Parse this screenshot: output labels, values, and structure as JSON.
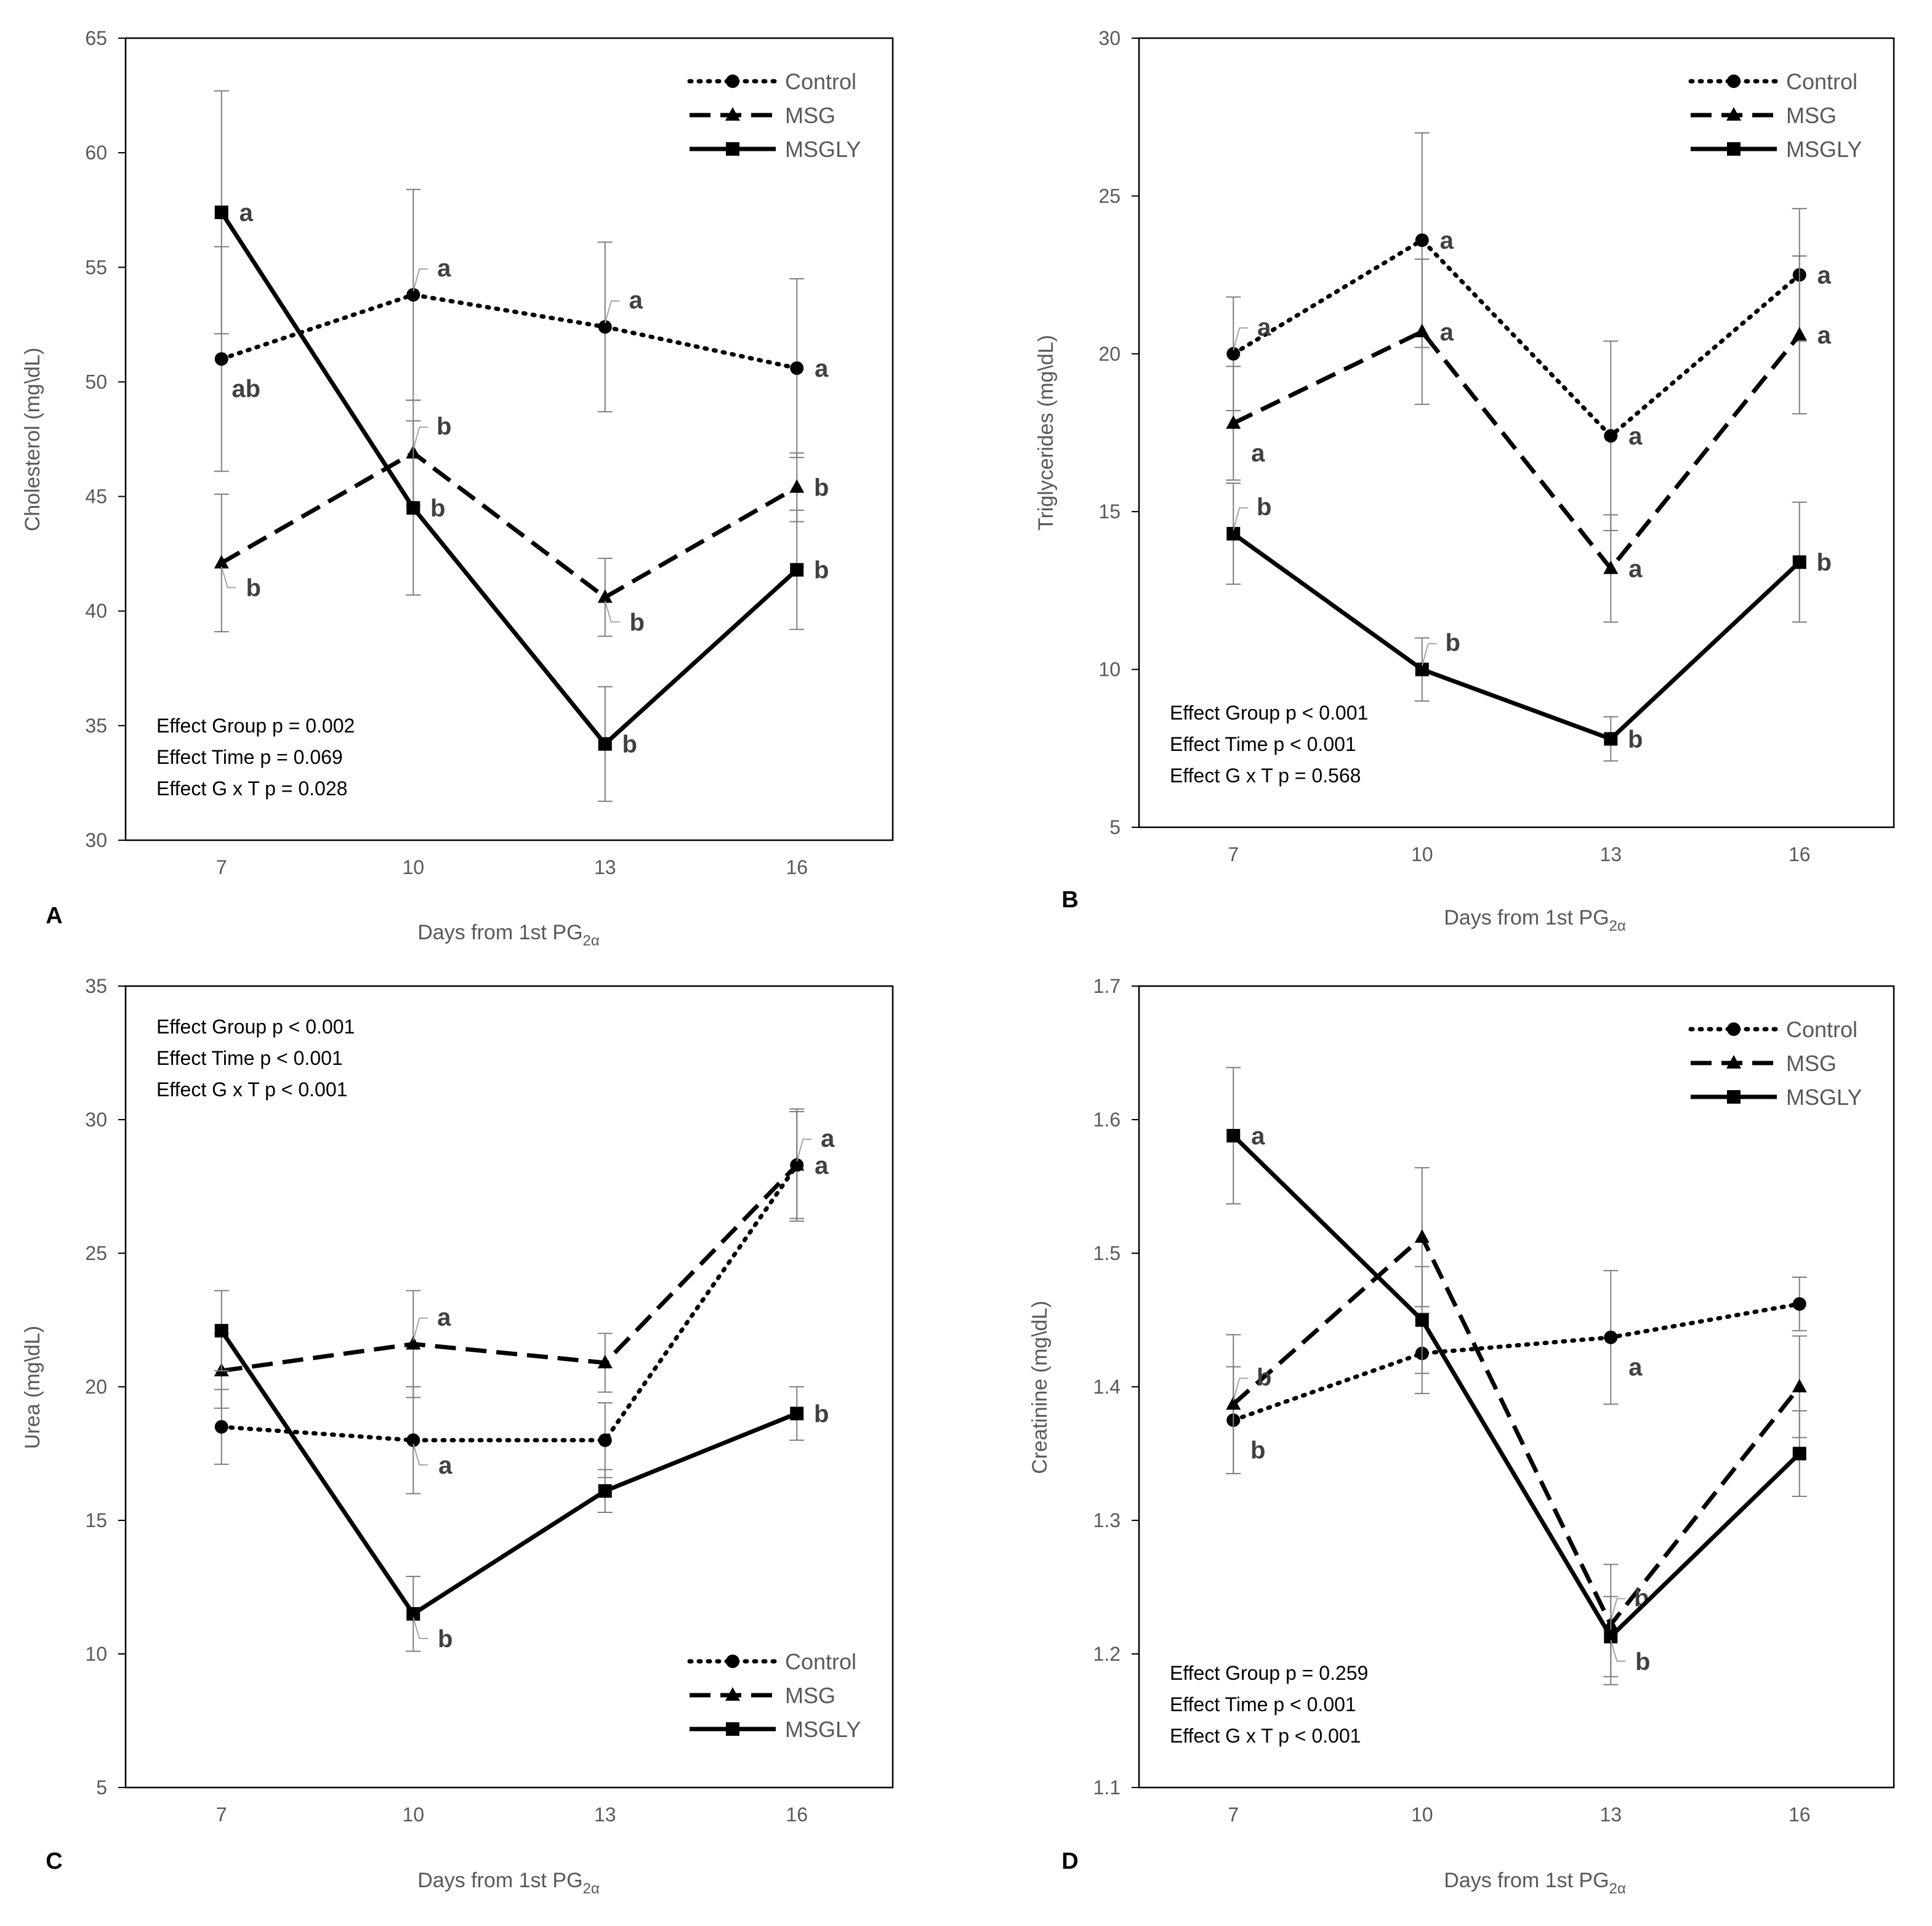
{
  "chart_data": [
    {
      "panel": "A",
      "type": "line",
      "ylabel": "Cholesterol  (mg\\dL)",
      "xlabel": "Days from 1st PG",
      "xlabel_sub": "2α",
      "categories": [
        "7",
        "10",
        "13",
        "16"
      ],
      "ylim": [
        30,
        65
      ],
      "yticks": [
        30,
        35,
        40,
        45,
        50,
        55,
        60,
        65
      ],
      "legend_position": "top-right",
      "series": [
        {
          "name": "Control",
          "values": [
            51.0,
            53.8,
            52.4,
            50.6
          ],
          "errors": [
            4.9,
            4.6,
            3.7,
            3.9
          ],
          "letters": [
            {
              "t": "ab",
              "pos": "below"
            },
            {
              "t": "a",
              "pos": "above-leader"
            },
            {
              "t": "a",
              "pos": "above-leader"
            },
            {
              "t": "a",
              "pos": "right"
            }
          ]
        },
        {
          "name": "MSG",
          "values": [
            42.1,
            46.9,
            40.6,
            45.4
          ],
          "errors": [
            3.0,
            2.3,
            1.7,
            1.5
          ],
          "letters": [
            {
              "t": "b",
              "pos": "below-leader"
            },
            {
              "t": "b",
              "pos": "above-leader"
            },
            {
              "t": "b",
              "pos": "below-leader"
            },
            {
              "t": "b",
              "pos": "right"
            }
          ]
        },
        {
          "name": "MSGLY",
          "values": [
            57.4,
            44.5,
            34.2,
            41.8
          ],
          "errors": [
            5.3,
            3.8,
            2.5,
            2.6
          ],
          "letters": [
            {
              "t": "a",
              "pos": "right"
            },
            {
              "t": "b",
              "pos": "right"
            },
            {
              "t": "b",
              "pos": "right"
            },
            {
              "t": "b",
              "pos": "right"
            }
          ]
        }
      ],
      "stats": [
        "Effect Group p = 0.002",
        "Effect Time p = 0.069",
        "Effect G x T p = 0.028"
      ],
      "stats_position": "bottom-left"
    },
    {
      "panel": "B",
      "type": "line",
      "ylabel": "Triglycerides  (mg\\dL)",
      "xlabel": "Days from 1st PG",
      "xlabel_sub": "2α",
      "categories": [
        "7",
        "10",
        "13",
        "16"
      ],
      "ylim": [
        5,
        30
      ],
      "yticks": [
        5,
        10,
        15,
        20,
        25,
        30
      ],
      "legend_position": "top-right",
      "series": [
        {
          "name": "Control",
          "values": [
            20.0,
            23.6,
            17.4,
            22.5
          ],
          "errors": [
            1.8,
            3.4,
            3.0,
            2.1
          ],
          "letters": [
            {
              "t": "a",
              "pos": "above-leader"
            },
            {
              "t": "a",
              "pos": "right"
            },
            {
              "t": "a",
              "pos": "right"
            },
            {
              "t": "a",
              "pos": "right"
            }
          ]
        },
        {
          "name": "MSG",
          "values": [
            17.8,
            20.7,
            13.2,
            20.6
          ],
          "errors": [
            1.8,
            2.3,
            1.7,
            2.5
          ],
          "letters": [
            {
              "t": "a",
              "pos": "below"
            },
            {
              "t": "a",
              "pos": "right"
            },
            {
              "t": "a",
              "pos": "right"
            },
            {
              "t": "a",
              "pos": "right"
            }
          ]
        },
        {
          "name": "MSGLY",
          "values": [
            14.3,
            10.0,
            7.8,
            13.4
          ],
          "errors": [
            1.6,
            1.0,
            0.7,
            1.9
          ],
          "letters": [
            {
              "t": "b",
              "pos": "above-leader"
            },
            {
              "t": "b",
              "pos": "above-leader"
            },
            {
              "t": "b",
              "pos": "right"
            },
            {
              "t": "b",
              "pos": "right"
            }
          ]
        }
      ],
      "stats": [
        "Effect Group p < 0.001",
        "Effect Time p < 0.001",
        "Effect G x T p = 0.568"
      ],
      "stats_position": "bottom-left"
    },
    {
      "panel": "C",
      "type": "line",
      "ylabel": "Urea  (mg\\dL)",
      "xlabel": "Days from 1st PG",
      "xlabel_sub": "2α",
      "categories": [
        "7",
        "10",
        "13",
        "16"
      ],
      "ylim": [
        5,
        35
      ],
      "yticks": [
        5,
        10,
        15,
        20,
        25,
        30,
        35
      ],
      "legend_position": "bottom-right",
      "series": [
        {
          "name": "Control",
          "values": [
            18.5,
            18.0,
            18.0,
            28.3
          ],
          "errors": [
            1.4,
            2.0,
            1.4,
            2.0
          ],
          "letters": [
            null,
            {
              "t": "a",
              "pos": "below-leader"
            },
            null,
            {
              "t": "a",
              "pos": "right"
            }
          ]
        },
        {
          "name": "MSG",
          "values": [
            20.6,
            21.6,
            20.9,
            28.3
          ],
          "errors": [
            1.4,
            2.0,
            1.1,
            2.1
          ],
          "letters": [
            null,
            {
              "t": "a",
              "pos": "above-leader"
            },
            null,
            {
              "t": "a",
              "pos": "above-leader"
            }
          ]
        },
        {
          "name": "MSGLY",
          "values": [
            22.1,
            11.5,
            16.1,
            19.0
          ],
          "errors": [
            1.5,
            1.4,
            0.8,
            1.0
          ],
          "letters": [
            null,
            {
              "t": "b",
              "pos": "below-leader"
            },
            null,
            {
              "t": "b",
              "pos": "right"
            }
          ]
        }
      ],
      "stats": [
        "Effect Group p < 0.001",
        "Effect Time p < 0.001",
        "Effect G x T p < 0.001"
      ],
      "stats_position": "top-left"
    },
    {
      "panel": "D",
      "type": "line",
      "ylabel": "Creatinine  (mg\\dL)",
      "xlabel": "Days from 1st PG",
      "xlabel_sub": "2α",
      "categories": [
        "7",
        "10",
        "13",
        "16"
      ],
      "ylim": [
        1.1,
        1.7
      ],
      "yticks": [
        1.1,
        1.2,
        1.3,
        1.4,
        1.5,
        1.6,
        1.7
      ],
      "legend_position": "top-right",
      "series": [
        {
          "name": "Control",
          "values": [
            1.375,
            1.425,
            1.437,
            1.462
          ],
          "errors": [
            0.04,
            0.03,
            0.05,
            0.02
          ],
          "letters": [
            {
              "t": "b",
              "pos": "below"
            },
            null,
            {
              "t": "a",
              "pos": "below"
            },
            null
          ]
        },
        {
          "name": "MSG",
          "values": [
            1.387,
            1.512,
            1.222,
            1.4
          ],
          "errors": [
            0.052,
            0.052,
            0.045,
            0.038
          ],
          "letters": [
            {
              "t": "b",
              "pos": "above-leader"
            },
            null,
            {
              "t": "b",
              "pos": "above-leader"
            },
            null
          ]
        },
        {
          "name": "MSGLY",
          "values": [
            1.588,
            1.45,
            1.213,
            1.35
          ],
          "errors": [
            0.051,
            0.04,
            0.03,
            0.032
          ],
          "letters": [
            {
              "t": "a",
              "pos": "right"
            },
            null,
            {
              "t": "b",
              "pos": "below-leader"
            },
            null
          ]
        }
      ],
      "stats": [
        "Effect Group p = 0.259",
        "Effect Time p < 0.001",
        "Effect G x T p < 0.001"
      ],
      "stats_position": "bottom-left"
    }
  ],
  "style": {
    "line_color": "#000000",
    "axis_text_color": "#595959",
    "letter_color": "#404040",
    "error_bar_color": "#7f7f7f",
    "series_markers": [
      "circle",
      "triangle",
      "square"
    ],
    "series_dashes": [
      "dotted",
      "dashed",
      "solid"
    ]
  }
}
